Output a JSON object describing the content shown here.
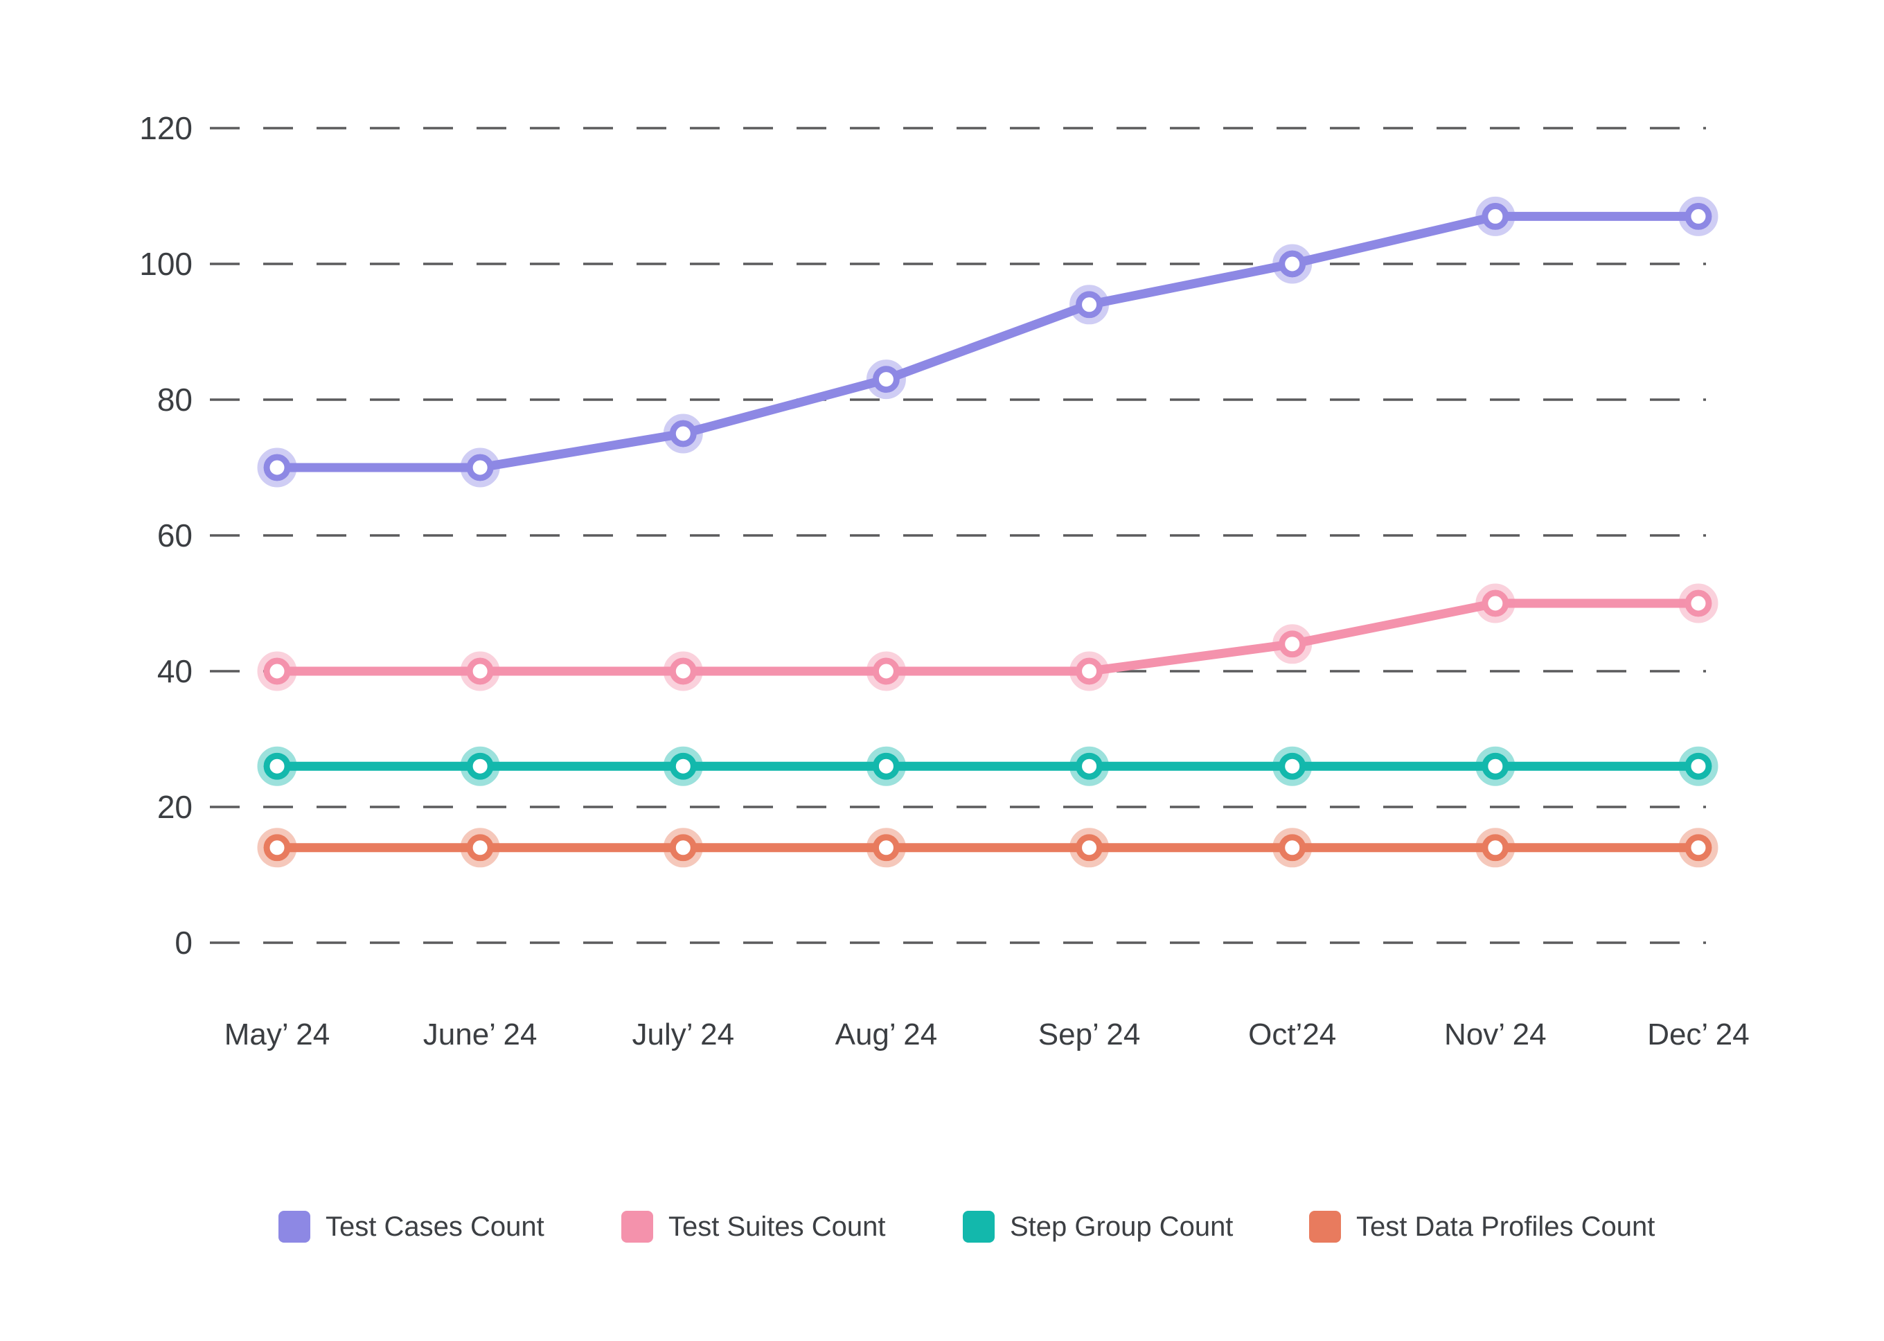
{
  "chart_data": {
    "type": "line",
    "title": "",
    "xlabel": "",
    "ylabel": "",
    "categories": [
      "May’ 24",
      "June’ 24",
      "July’ 24",
      "Aug’ 24",
      "Sep’ 24",
      "Oct’24",
      "Nov’ 24",
      "Dec’ 24"
    ],
    "yticks": [
      120,
      100,
      80,
      60,
      40,
      20,
      0
    ],
    "ylim": [
      0,
      120
    ],
    "grid": "horizontal-dashed",
    "grid_color": "#5b5b5d",
    "legend_position": "bottom",
    "series": [
      {
        "name": "Test Cases Count",
        "color": "#8d88e4",
        "values": [
          70,
          70,
          75,
          83,
          94,
          100,
          107,
          107
        ]
      },
      {
        "name": "Test Suites Count",
        "color": "#f492ac",
        "values": [
          40,
          40,
          40,
          40,
          40,
          44,
          50,
          50
        ]
      },
      {
        "name": "Step Group Count",
        "color": "#13b8ac",
        "values": [
          26,
          26,
          26,
          26,
          26,
          26,
          26,
          26
        ]
      },
      {
        "name": "Test Data Profiles Count",
        "color": "#e87b5e",
        "values": [
          14,
          14,
          14,
          14,
          14,
          14,
          14,
          14
        ]
      }
    ]
  }
}
